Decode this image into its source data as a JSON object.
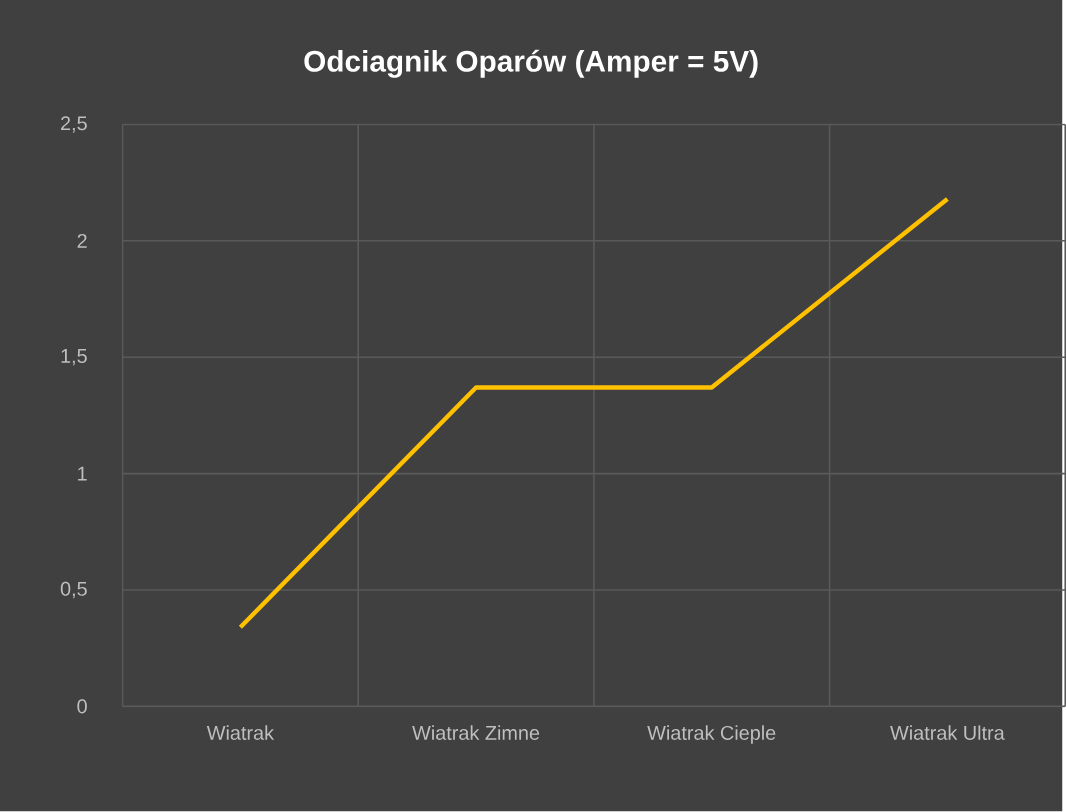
{
  "chart_data": {
    "type": "line",
    "title": "Odciagnik Oparów (Amper = 5V)",
    "categories": [
      "Wiatrak",
      "Wiatrak Zimne",
      "Wiatrak Cieple",
      "Wiatrak Ultra"
    ],
    "series": [
      {
        "color": "#ffc000",
        "values": [
          0.34,
          1.37,
          1.37,
          2.18
        ]
      }
    ],
    "ylim": [
      0,
      2.5
    ],
    "yticks": [
      0,
      {
        "value": 0.5,
        "label": "0,5"
      },
      1,
      {
        "value": 1.5,
        "label": "1,5"
      },
      2,
      {
        "value": 2.5,
        "label": "2,5"
      }
    ],
    "grid": true,
    "marker": "none",
    "line_style": "solid"
  }
}
